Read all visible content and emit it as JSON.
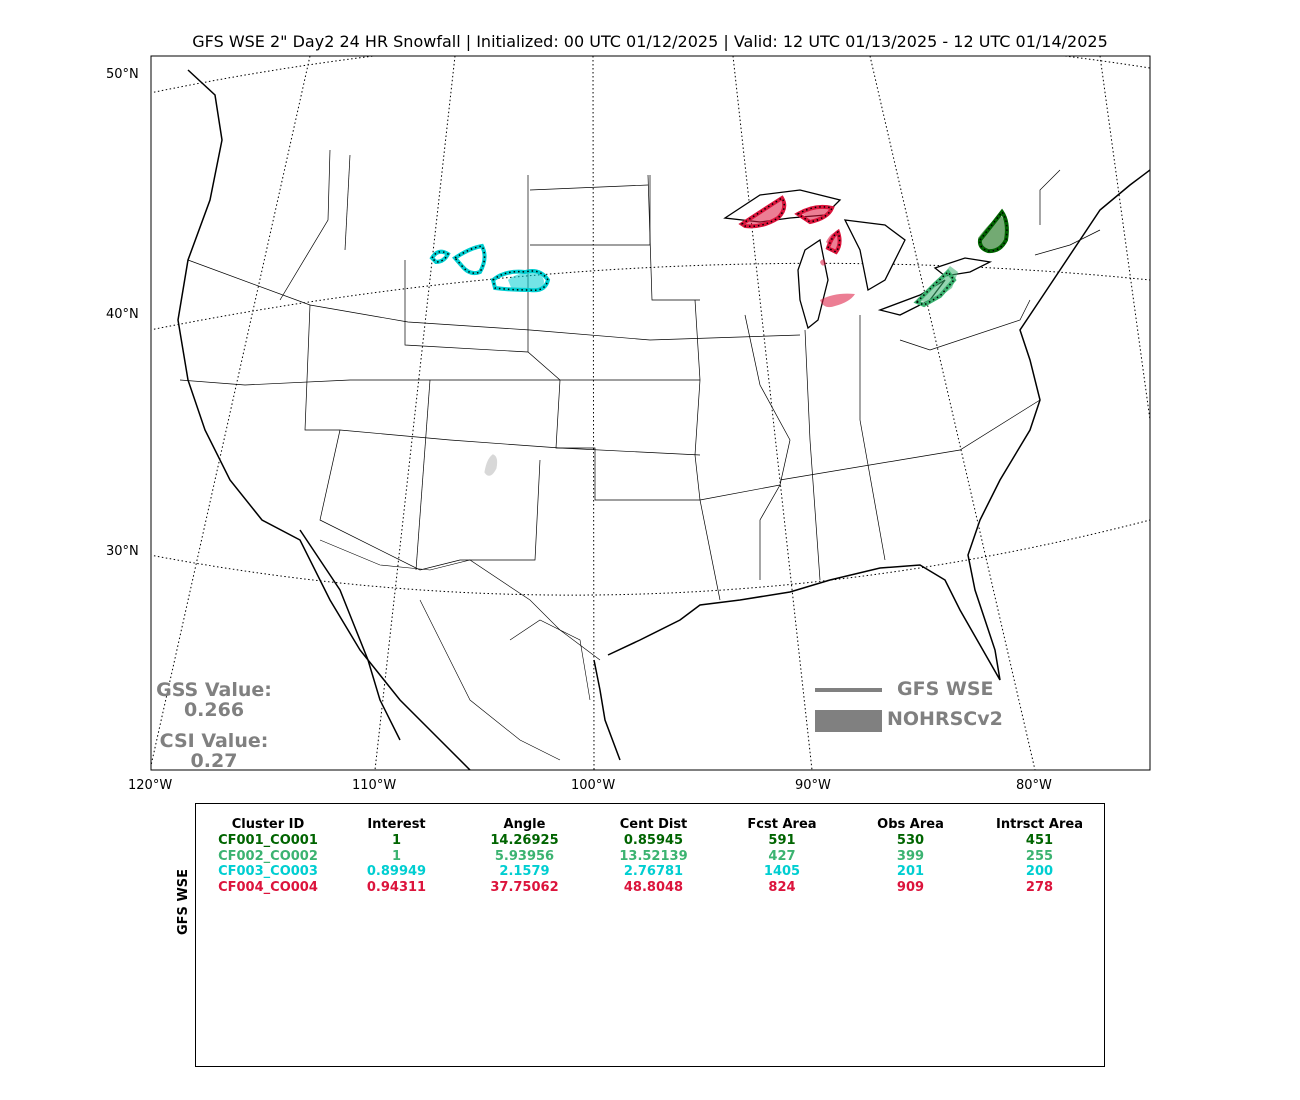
{
  "title": "GFS WSE 2\" Day2 24 HR Snowfall | Initialized: 00 UTC 01/12/2025 | Valid: 12 UTC 01/13/2025 - 12 UTC 01/14/2025",
  "lat_labels": [
    "50°N",
    "40°N",
    "30°N"
  ],
  "lon_labels": [
    "120°W",
    "110°W",
    "100°W",
    "90°W",
    "80°W"
  ],
  "gss": {
    "label": "GSS Value:",
    "value": "0.266"
  },
  "csi": {
    "label": "CSI Value:",
    "value": "0.27"
  },
  "legend": {
    "forecast": "GFS WSE",
    "observed": "NOHRSCv2",
    "color": "#808080"
  },
  "table": {
    "ylabel": "GFS WSE",
    "headers": [
      "Cluster ID",
      "Interest",
      "Angle",
      "Cent Dist",
      "Fcst Area",
      "Obs Area",
      "Intrsct Area"
    ],
    "rows": [
      {
        "color": "#006400",
        "cells": [
          "CF001_CO001",
          "1",
          "14.26925",
          "0.85945",
          "591",
          "530",
          "451"
        ]
      },
      {
        "color": "#3cb371",
        "cells": [
          "CF002_CO002",
          "1",
          "5.93956",
          "13.52139",
          "427",
          "399",
          "255"
        ]
      },
      {
        "color": "#00ced1",
        "cells": [
          "CF003_CO003",
          "0.89949",
          "2.1579",
          "2.76781",
          "1405",
          "201",
          "200"
        ]
      },
      {
        "color": "#dc143c",
        "cells": [
          "CF004_CO004",
          "0.94311",
          "37.75062",
          "48.8048",
          "824",
          "909",
          "278"
        ]
      }
    ]
  },
  "clusters": [
    {
      "id": "CF001_CO001",
      "color": "#006400",
      "region": "eastern Lake Ontario / Tug Hill"
    },
    {
      "id": "CF002_CO002",
      "color": "#3cb371",
      "region": "eastern Lake Erie"
    },
    {
      "id": "CF003_CO003",
      "color": "#00ced1",
      "region": "southeast Wyoming / western Nebraska"
    },
    {
      "id": "CF004_CO004",
      "color": "#dc143c",
      "region": "Upper Peninsula Michigan / western Lower Michigan"
    }
  ]
}
